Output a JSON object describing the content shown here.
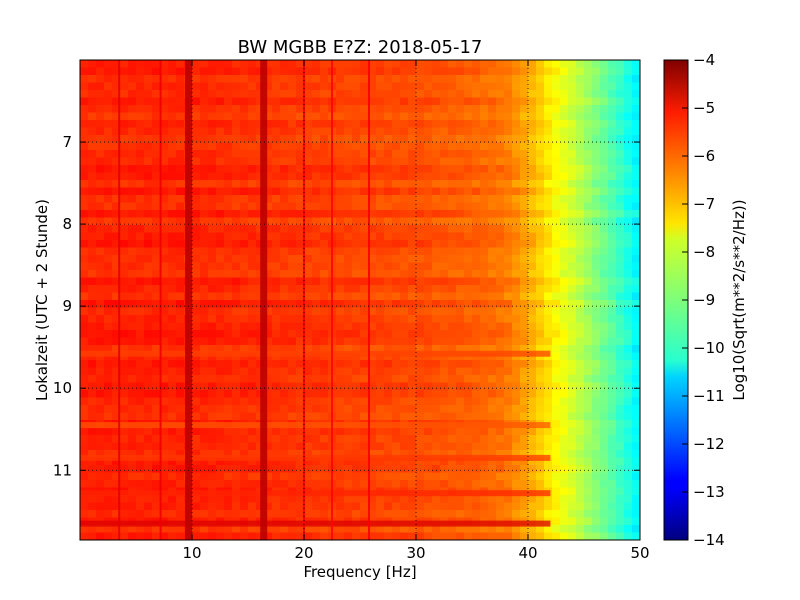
{
  "chart_data": {
    "type": "heatmap",
    "title": "BW MGBB E?Z: 2018-05-17",
    "xlabel": "Frequency [Hz]",
    "ylabel": "Lokalzeit (UTC + 2 Stunde)",
    "colorbar_label": "Log10(Sqrt(m**2/s**2/Hz))",
    "xlim": [
      0,
      50
    ],
    "ylim": [
      11.85,
      6.0
    ],
    "y_inverted": true,
    "x_ticks": [
      10,
      20,
      30,
      40,
      50
    ],
    "x_tick_labels": [
      "10",
      "20",
      "30",
      "40",
      "50"
    ],
    "y_ticks": [
      7,
      8,
      9,
      10,
      11
    ],
    "y_tick_labels": [
      "7",
      "8",
      "9",
      "10",
      "11"
    ],
    "colorbar_range": [
      -14,
      -4
    ],
    "colorbar_ticks": [
      -4,
      -5,
      -6,
      -7,
      -8,
      -9,
      -10,
      -11,
      -12,
      -13,
      -14
    ],
    "colorbar_tick_labels": [
      "−4",
      "−5",
      "−6",
      "−7",
      "−8",
      "−9",
      "−10",
      "−11",
      "−12",
      "−13",
      "−14"
    ],
    "colormap": "jet",
    "grid": true,
    "grid_style": "dotted",
    "spectral_profile": {
      "frequency_hz": [
        0,
        5,
        10,
        15,
        20,
        25,
        30,
        35,
        38,
        40,
        42,
        44,
        46,
        48,
        50
      ],
      "level_log10": [
        -5.6,
        -5.6,
        -5.6,
        -5.7,
        -5.8,
        -5.9,
        -6.0,
        -6.2,
        -6.4,
        -6.9,
        -7.6,
        -8.2,
        -8.9,
        -9.6,
        -10.4
      ]
    },
    "spectral_lines_hz": [
      {
        "freq": 3.5,
        "level": -5.0
      },
      {
        "freq": 7.2,
        "level": -5.1
      },
      {
        "freq": 9.7,
        "level": -4.6
      },
      {
        "freq": 16.4,
        "level": -4.6
      },
      {
        "freq": 20.0,
        "level": -5.2
      },
      {
        "freq": 22.5,
        "level": -5.3
      },
      {
        "freq": 25.8,
        "level": -5.2
      }
    ],
    "event_times": [
      {
        "time": 11.65,
        "level": -4.9
      },
      {
        "time": 11.28,
        "level": -5.6
      },
      {
        "time": 10.85,
        "level": -5.8
      },
      {
        "time": 10.45,
        "level": -6.1
      },
      {
        "time": 9.58,
        "level": -5.9
      }
    ]
  }
}
